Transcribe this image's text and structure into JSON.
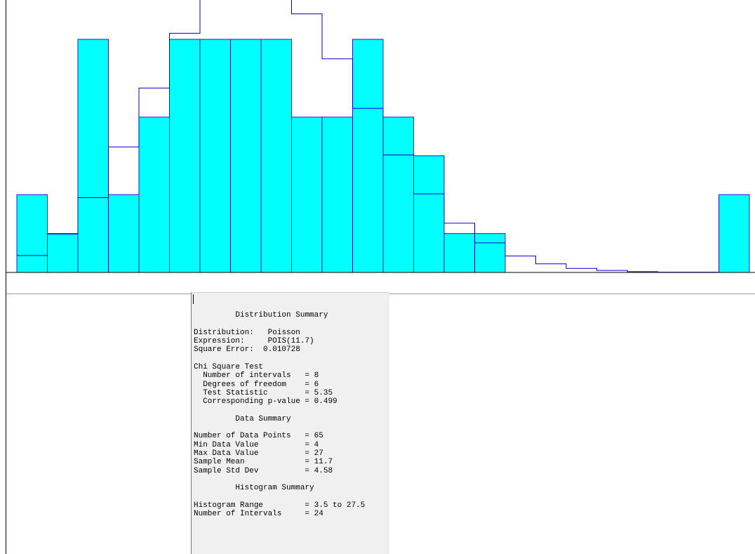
{
  "chart_data": {
    "type": "bar",
    "title": "",
    "xlabel": "",
    "ylabel": "",
    "histogram_range": [
      3.5,
      27.5
    ],
    "number_of_intervals": 24,
    "y_max": 0.19,
    "observed_counts": [
      2,
      1,
      6,
      2,
      4,
      6,
      6,
      6,
      6,
      4,
      4,
      6,
      4,
      3,
      1,
      1,
      0,
      0,
      0,
      0,
      0,
      0,
      0,
      2
    ],
    "observed_proportions": [
      0.0308,
      0.0154,
      0.0923,
      0.0308,
      0.0615,
      0.0923,
      0.0923,
      0.0923,
      0.0923,
      0.0615,
      0.0615,
      0.0923,
      0.0615,
      0.0462,
      0.0154,
      0.0154,
      0,
      0,
      0,
      0,
      0,
      0,
      0,
      0.0308
    ],
    "fitted_proportions": [
      0.0067,
      0.0152,
      0.0296,
      0.0497,
      0.073,
      0.0947,
      0.1099,
      0.1176,
      0.1146,
      0.1024,
      0.0846,
      0.065,
      0.0465,
      0.0311,
      0.0195,
      0.0117,
      0.0065,
      0.0034,
      0.0016,
      0.0008,
      0.0003,
      0.0001,
      0.0001,
      0.0
    ],
    "colors": {
      "bar_fill": "#00ffff",
      "bar_edge": "#1c1ccc",
      "fit_line": "#0000cc",
      "axis": "#000000"
    },
    "grid": false,
    "legend": "none"
  },
  "summary": {
    "distribution_header": "Distribution Summary",
    "distribution_label": "Distribution:",
    "distribution_value": "Poisson",
    "expression_label": "Expression:",
    "expression_value": "POIS(11.7)",
    "square_error_label": "Square Error:",
    "square_error_value": "0.010728",
    "chi_header": "Chi Square Test",
    "chi_intervals_label": "  Number of intervals   =",
    "chi_intervals_value": "8",
    "chi_dof_label": "  Degrees of freedom    =",
    "chi_dof_value": "6",
    "chi_stat_label": "  Test Statistic        =",
    "chi_stat_value": "5.35",
    "chi_p_label": "  Corresponding p-value =",
    "chi_p_value": "0.499",
    "data_header": "Data Summary",
    "n_points_label": "Number of Data Points   =",
    "n_points_value": "65",
    "min_label": "Min Data Value          =",
    "min_value": "4",
    "max_label": "Max Data Value          =",
    "max_value": "27",
    "mean_label": "Sample Mean             =",
    "mean_value": "11.7",
    "std_label": "Sample Std Dev          =",
    "std_value": "4.58",
    "hist_header": "Histogram Summary",
    "hist_range_label": "Histogram Range         =",
    "hist_range_value": "3.5 to 27.5",
    "hist_intervals_label": "Number of Intervals     =",
    "hist_intervals_value": "24"
  }
}
